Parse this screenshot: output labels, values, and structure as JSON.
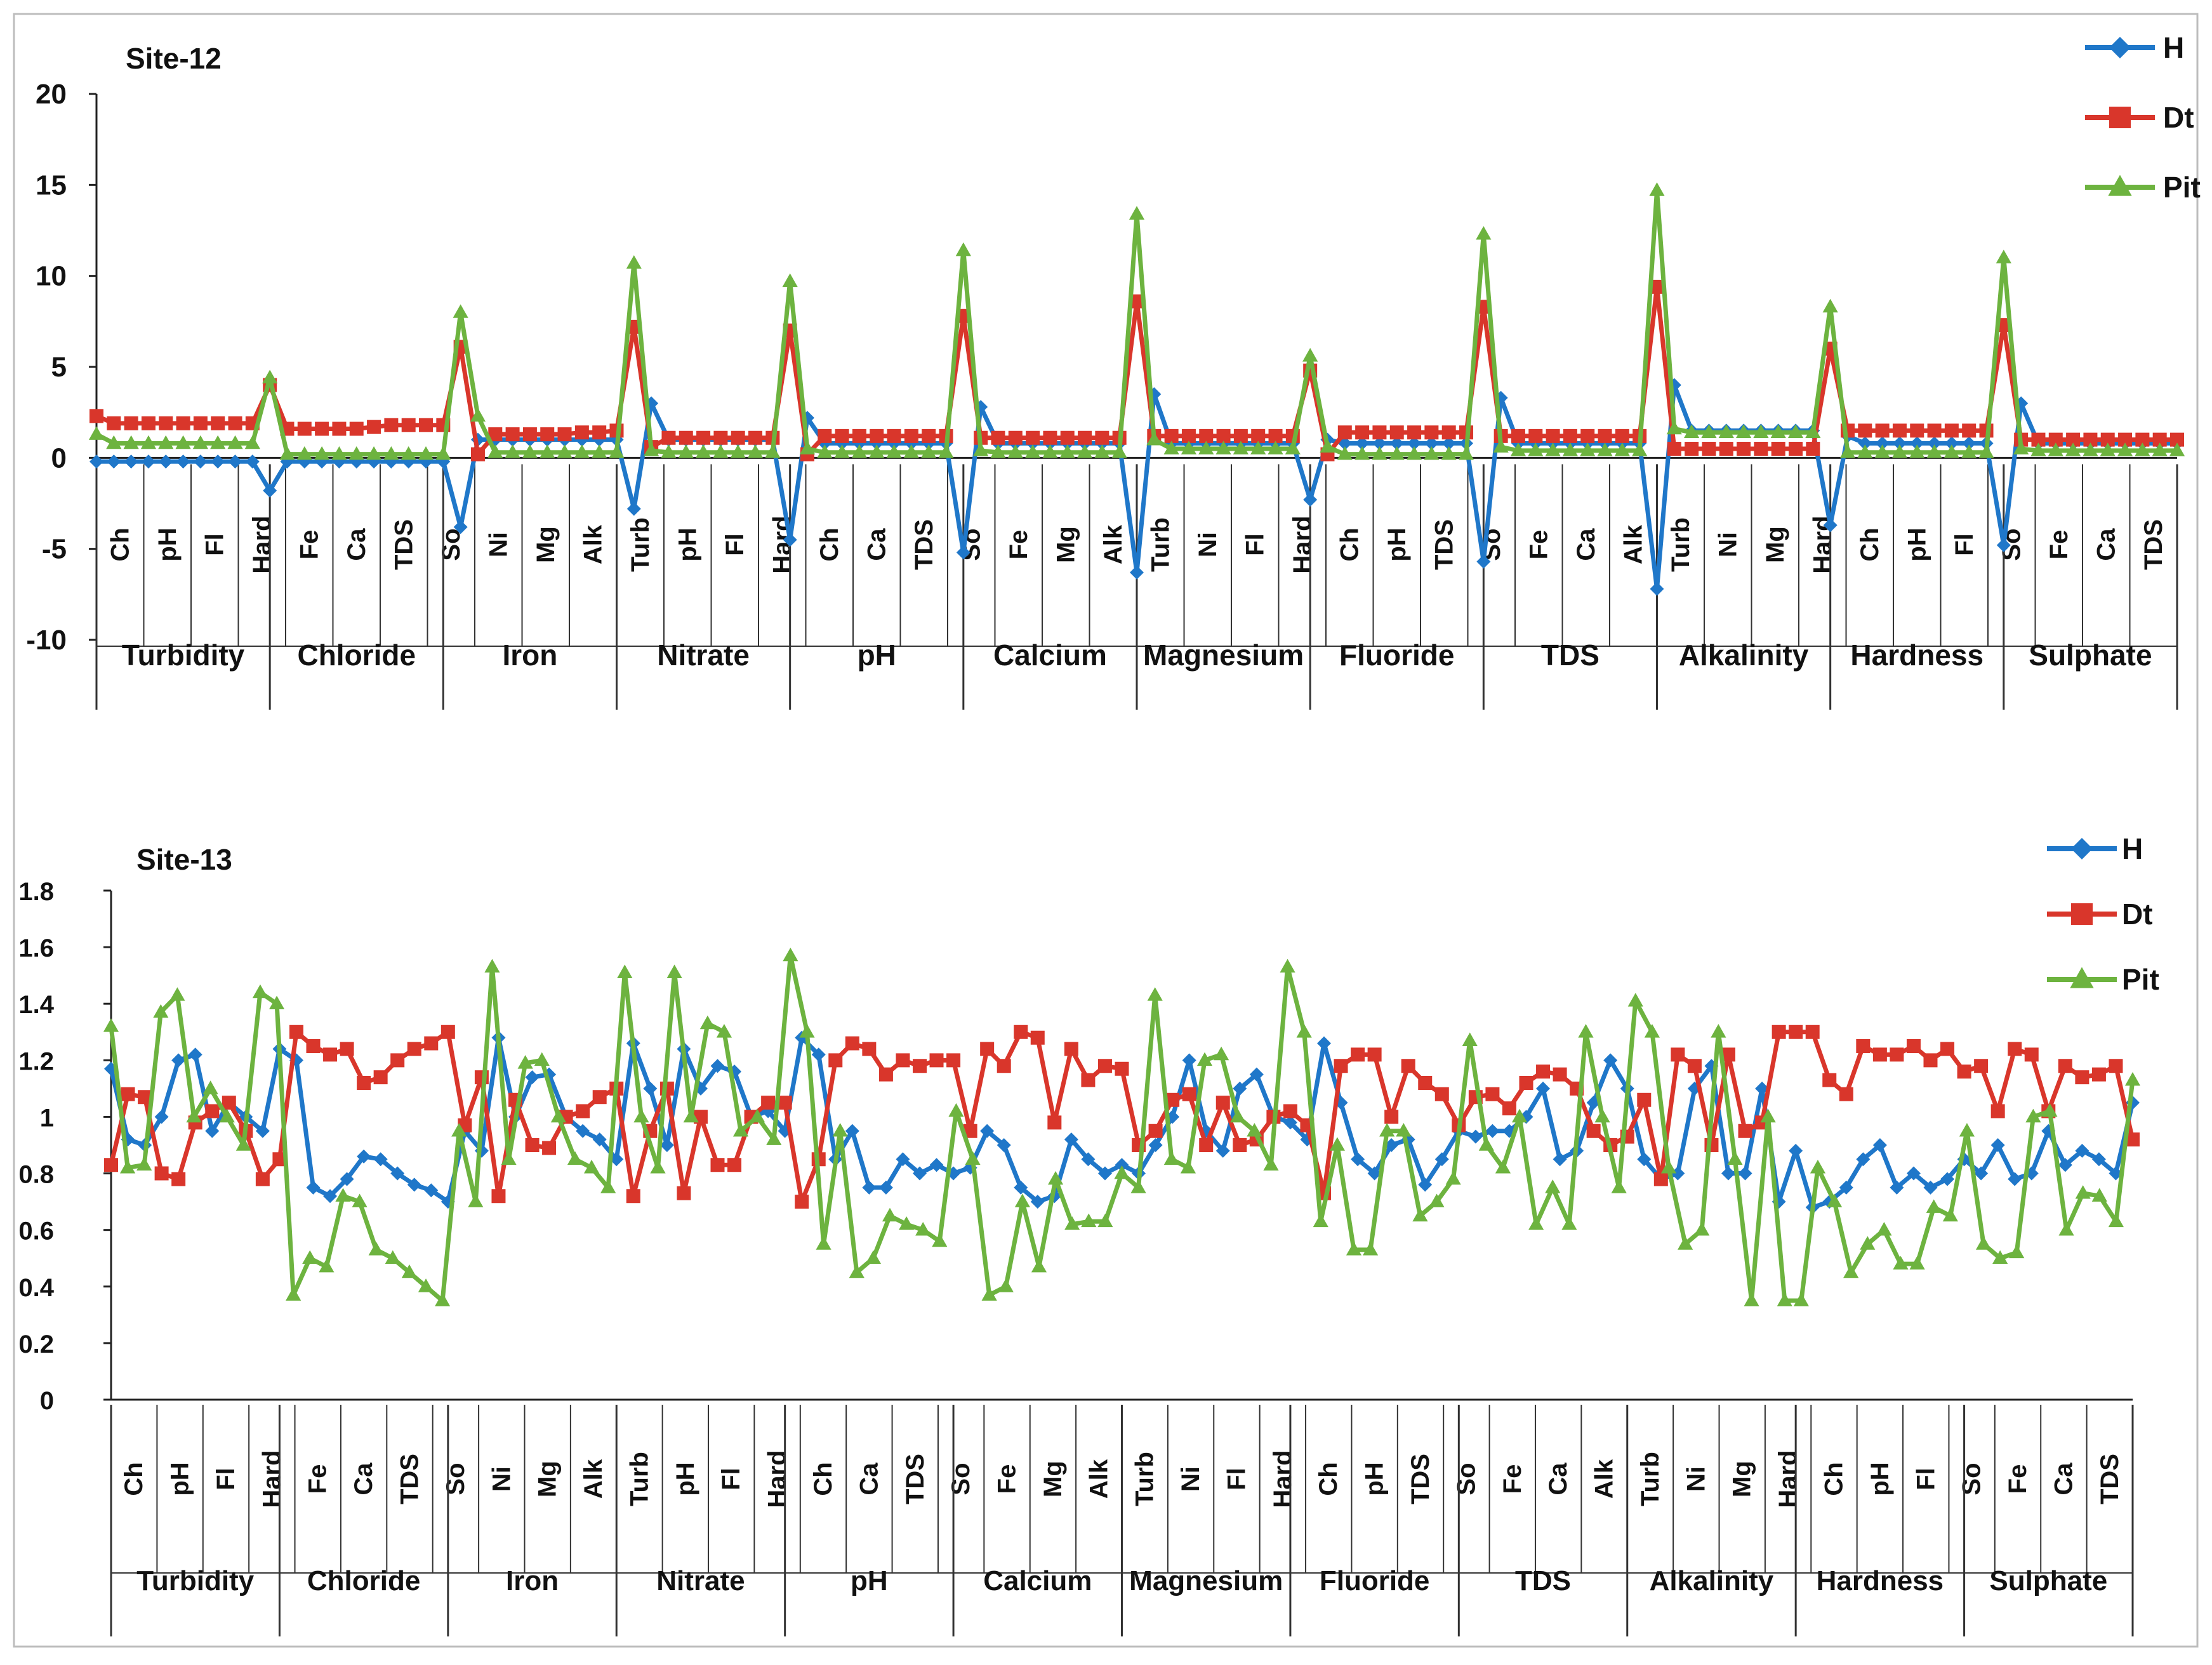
{
  "colors": {
    "H": "#1f77c9",
    "Dt": "#d9362b",
    "Pit": "#6db33f"
  },
  "chart_data": [
    {
      "type": "line",
      "title": "Site-12",
      "ylim": [
        -10,
        20
      ],
      "yticks": [
        -10,
        -5,
        0,
        5,
        10,
        15,
        20
      ],
      "legend_position": "top-right",
      "x_labels": [
        "Ch",
        "pH",
        "Fl",
        "Hard",
        "Fe",
        "Ca",
        "TDS",
        "So",
        "Ni",
        "Mg",
        "Alk",
        "Turb",
        "pH",
        "Fl",
        "Hard",
        "Ch",
        "Ca",
        "TDS",
        "So",
        "Fe",
        "Mg",
        "Alk",
        "Turb",
        "Ni",
        "Fl",
        "Hard",
        "Ch",
        "pH",
        "TDS",
        "So",
        "Fe",
        "Ca",
        "Alk",
        "Turb",
        "Ni",
        "Mg",
        "Hard",
        "Ch",
        "pH",
        "Fl",
        "So",
        "Fe",
        "Ca",
        "TDS"
      ],
      "groups": [
        "Turbidity",
        "Chloride",
        "Iron",
        "Nitrate",
        "pH",
        "Calcium",
        "Magnesium",
        "Fluoride",
        "TDS",
        "Alkalinity",
        "Hardness",
        "Sulphate"
      ],
      "series": [
        {
          "name": "H",
          "values": [
            -0.2,
            -0.2,
            -0.2,
            -0.2,
            -0.2,
            -0.2,
            -0.2,
            -0.2,
            -0.2,
            -0.2,
            -1.8,
            -0.2,
            -0.2,
            -0.2,
            -0.2,
            -0.2,
            -0.2,
            -0.2,
            -0.2,
            -0.2,
            -0.2,
            -3.8,
            1.0,
            1.0,
            1.0,
            1.0,
            1.0,
            1.0,
            1.0,
            1.0,
            1.0,
            -2.8,
            3.0,
            1.0,
            1.0,
            1.0,
            1.0,
            1.0,
            1.0,
            1.0,
            -4.5,
            2.2,
            0.8,
            0.8,
            0.8,
            0.8,
            0.8,
            0.8,
            0.8,
            0.8,
            -5.2,
            2.8,
            0.8,
            0.8,
            0.8,
            0.8,
            0.8,
            0.8,
            0.8,
            0.8,
            -6.3,
            3.5,
            0.8,
            0.8,
            0.8,
            0.8,
            0.8,
            0.8,
            0.8,
            0.8,
            -2.3,
            1.0,
            0.8,
            0.8,
            0.8,
            0.8,
            0.8,
            0.8,
            0.8,
            0.8,
            -5.7,
            3.3,
            0.8,
            0.8,
            0.8,
            0.8,
            0.8,
            0.8,
            0.8,
            0.8,
            -7.2,
            4.0,
            1.5,
            1.5,
            1.5,
            1.5,
            1.5,
            1.5,
            1.5,
            1.5,
            -3.7,
            1.2,
            0.8,
            0.8,
            0.8,
            0.8,
            0.8,
            0.8,
            0.8,
            0.8,
            -4.8,
            3.0,
            0.8,
            0.8,
            0.8,
            0.8,
            0.8,
            0.8,
            0.8,
            0.8,
            0.8
          ]
        },
        {
          "name": "Dt",
          "values": [
            2.3,
            1.9,
            1.9,
            1.9,
            1.9,
            1.9,
            1.9,
            1.9,
            1.9,
            1.9,
            4.0,
            1.6,
            1.6,
            1.6,
            1.6,
            1.6,
            1.7,
            1.8,
            1.8,
            1.8,
            1.8,
            6.1,
            0.2,
            1.3,
            1.3,
            1.3,
            1.3,
            1.3,
            1.4,
            1.4,
            1.5,
            7.2,
            0.6,
            1.1,
            1.1,
            1.1,
            1.1,
            1.1,
            1.1,
            1.1,
            7.0,
            0.2,
            1.2,
            1.2,
            1.2,
            1.2,
            1.2,
            1.2,
            1.2,
            1.2,
            7.8,
            1.1,
            1.1,
            1.1,
            1.1,
            1.1,
            1.1,
            1.1,
            1.1,
            1.1,
            8.6,
            1.2,
            1.2,
            1.2,
            1.2,
            1.2,
            1.2,
            1.2,
            1.2,
            1.2,
            4.8,
            0.2,
            1.4,
            1.4,
            1.4,
            1.4,
            1.4,
            1.4,
            1.4,
            1.4,
            8.3,
            1.2,
            1.2,
            1.2,
            1.2,
            1.2,
            1.2,
            1.2,
            1.2,
            1.2,
            9.4,
            0.5,
            0.5,
            0.5,
            0.5,
            0.5,
            0.5,
            0.5,
            0.5,
            0.5,
            6.0,
            1.5,
            1.5,
            1.5,
            1.5,
            1.5,
            1.5,
            1.5,
            1.5,
            1.5,
            7.3,
            1.0,
            1.0,
            1.0,
            1.0,
            1.0,
            1.0,
            1.0,
            1.0,
            1.0,
            1.0
          ]
        },
        {
          "name": "Pit",
          "values": [
            1.3,
            0.8,
            0.8,
            0.8,
            0.8,
            0.8,
            0.8,
            0.8,
            0.8,
            0.8,
            4.4,
            0.2,
            0.2,
            0.2,
            0.2,
            0.2,
            0.2,
            0.2,
            0.2,
            0.2,
            0.2,
            8.0,
            2.3,
            0.3,
            0.3,
            0.3,
            0.3,
            0.3,
            0.3,
            0.3,
            0.3,
            10.7,
            0.4,
            0.3,
            0.3,
            0.3,
            0.3,
            0.3,
            0.3,
            0.3,
            9.7,
            0.5,
            0.3,
            0.3,
            0.3,
            0.3,
            0.3,
            0.3,
            0.3,
            0.3,
            11.4,
            0.4,
            0.3,
            0.3,
            0.3,
            0.3,
            0.3,
            0.3,
            0.3,
            0.3,
            13.4,
            1.0,
            0.5,
            0.5,
            0.5,
            0.5,
            0.5,
            0.5,
            0.5,
            0.5,
            5.6,
            0.6,
            0.2,
            0.2,
            0.2,
            0.2,
            0.2,
            0.2,
            0.2,
            0.2,
            12.3,
            0.6,
            0.4,
            0.4,
            0.4,
            0.4,
            0.4,
            0.4,
            0.4,
            0.4,
            14.7,
            1.6,
            1.4,
            1.4,
            1.4,
            1.4,
            1.4,
            1.4,
            1.4,
            1.4,
            8.3,
            0.3,
            0.3,
            0.3,
            0.3,
            0.3,
            0.3,
            0.3,
            0.3,
            0.3,
            11.0,
            0.5,
            0.4,
            0.4,
            0.4,
            0.4,
            0.4,
            0.4,
            0.4,
            0.4,
            0.4
          ]
        }
      ]
    },
    {
      "type": "line",
      "title": "Site-13",
      "ylim": [
        0,
        1.8
      ],
      "yticks": [
        0,
        0.2,
        0.4,
        0.6,
        0.8,
        1,
        1.2,
        1.4,
        1.6,
        1.8
      ],
      "legend_position": "top-right",
      "x_labels": [
        "Ch",
        "pH",
        "Fl",
        "Hard",
        "Fe",
        "Ca",
        "TDS",
        "So",
        "Ni",
        "Mg",
        "Alk",
        "Turb",
        "pH",
        "Fl",
        "Hard",
        "Ch",
        "Ca",
        "TDS",
        "So",
        "Fe",
        "Mg",
        "Alk",
        "Turb",
        "Ni",
        "Fl",
        "Hard",
        "Ch",
        "pH",
        "TDS",
        "So",
        "Fe",
        "Ca",
        "Alk",
        "Turb",
        "Ni",
        "Mg",
        "Hard",
        "Ch",
        "pH",
        "Fl",
        "So",
        "Fe",
        "Ca",
        "TDS"
      ],
      "groups": [
        "Turbidity",
        "Chloride",
        "Iron",
        "Nitrate",
        "pH",
        "Calcium",
        "Magnesium",
        "Fluoride",
        "TDS",
        "Alkalinity",
        "Hardness",
        "Sulphate"
      ],
      "series": [
        {
          "name": "H",
          "values": [
            1.17,
            0.92,
            0.9,
            1.0,
            1.2,
            1.22,
            0.95,
            1.05,
            1.0,
            0.95,
            1.24,
            1.2,
            0.75,
            0.72,
            0.78,
            0.86,
            0.85,
            0.8,
            0.76,
            0.74,
            0.7,
            0.95,
            0.88,
            1.28,
            1.0,
            1.14,
            1.15,
            1.0,
            0.95,
            0.92,
            0.85,
            1.26,
            1.1,
            0.9,
            1.24,
            1.1,
            1.18,
            1.16,
            1.0,
            1.02,
            0.95,
            1.28,
            1.22,
            0.85,
            0.95,
            0.75,
            0.75,
            0.85,
            0.8,
            0.83,
            0.8,
            0.82,
            0.95,
            0.9,
            0.75,
            0.7,
            0.72,
            0.92,
            0.85,
            0.8,
            0.83,
            0.8,
            0.9,
            1.0,
            1.2,
            0.95,
            0.88,
            1.1,
            1.15,
            1.0,
            0.98,
            0.92,
            1.26,
            1.05,
            0.85,
            0.8,
            0.9,
            0.92,
            0.76,
            0.85,
            0.95,
            0.93,
            0.95,
            0.95,
            1.0,
            1.1,
            0.85,
            0.88,
            1.05,
            1.2,
            1.1,
            0.85,
            0.78,
            0.8,
            1.1,
            1.18,
            0.8,
            0.8,
            1.1,
            0.7,
            0.88,
            0.68,
            0.7,
            0.75,
            0.85,
            0.9,
            0.75,
            0.8,
            0.75,
            0.78,
            0.85,
            0.8,
            0.9,
            0.78,
            0.8,
            0.95,
            0.83,
            0.88,
            0.85,
            0.8,
            1.05
          ]
        },
        {
          "name": "Dt",
          "values": [
            0.83,
            1.08,
            1.07,
            0.8,
            0.78,
            0.98,
            1.02,
            1.05,
            0.95,
            0.78,
            0.85,
            1.3,
            1.25,
            1.22,
            1.24,
            1.12,
            1.14,
            1.2,
            1.24,
            1.26,
            1.3,
            0.97,
            1.14,
            0.72,
            1.06,
            0.9,
            0.89,
            1.0,
            1.02,
            1.07,
            1.1,
            0.72,
            0.95,
            1.1,
            0.73,
            1.0,
            0.83,
            0.83,
            1.0,
            1.05,
            1.05,
            0.7,
            0.85,
            1.2,
            1.26,
            1.24,
            1.15,
            1.2,
            1.18,
            1.2,
            1.2,
            0.95,
            1.24,
            1.18,
            1.3,
            1.28,
            0.98,
            1.24,
            1.13,
            1.18,
            1.17,
            0.9,
            0.95,
            1.06,
            1.08,
            0.9,
            1.05,
            0.9,
            0.92,
            1.0,
            1.02,
            0.97,
            0.73,
            1.18,
            1.22,
            1.22,
            1.0,
            1.18,
            1.12,
            1.08,
            0.97,
            1.07,
            1.08,
            1.03,
            1.12,
            1.16,
            1.15,
            1.1,
            0.95,
            0.9,
            0.93,
            1.06,
            0.78,
            1.22,
            1.18,
            0.9,
            1.22,
            0.95,
            0.98,
            1.3,
            1.3,
            1.3,
            1.13,
            1.08,
            1.25,
            1.22,
            1.22,
            1.25,
            1.2,
            1.24,
            1.16,
            1.18,
            1.02,
            1.24,
            1.22,
            1.02,
            1.18,
            1.14,
            1.15,
            1.18,
            0.92
          ]
        },
        {
          "name": "Pit",
          "values": [
            1.32,
            0.82,
            0.83,
            1.37,
            1.43,
            1.0,
            1.1,
            1.0,
            0.9,
            1.44,
            1.4,
            0.37,
            0.5,
            0.47,
            0.72,
            0.7,
            0.53,
            0.5,
            0.45,
            0.4,
            0.35,
            0.95,
            0.7,
            1.53,
            0.85,
            1.19,
            1.2,
            1.0,
            0.85,
            0.82,
            0.75,
            1.51,
            1.0,
            0.82,
            1.51,
            1.0,
            1.33,
            1.3,
            0.95,
            1.0,
            0.92,
            1.57,
            1.3,
            0.55,
            0.95,
            0.45,
            0.5,
            0.65,
            0.62,
            0.6,
            0.56,
            1.02,
            0.85,
            0.37,
            0.4,
            0.7,
            0.47,
            0.78,
            0.62,
            0.63,
            0.63,
            0.8,
            0.75,
            1.43,
            0.85,
            0.82,
            1.2,
            1.22,
            1.0,
            0.95,
            0.83,
            1.53,
            1.3,
            0.63,
            0.9,
            0.53,
            0.53,
            0.95,
            0.95,
            0.65,
            0.7,
            0.78,
            1.27,
            0.9,
            0.82,
            1.0,
            0.62,
            0.75,
            0.62,
            1.3,
            1.0,
            0.75,
            1.41,
            1.3,
            0.82,
            0.55,
            0.6,
            1.3,
            0.85,
            0.35,
            1.0,
            0.35,
            0.35,
            0.82,
            0.7,
            0.45,
            0.55,
            0.6,
            0.48,
            0.48,
            0.68,
            0.65,
            0.95,
            0.55,
            0.5,
            0.52,
            1.0,
            1.02,
            0.6,
            0.73,
            0.72,
            0.63,
            1.13
          ]
        }
      ]
    }
  ]
}
